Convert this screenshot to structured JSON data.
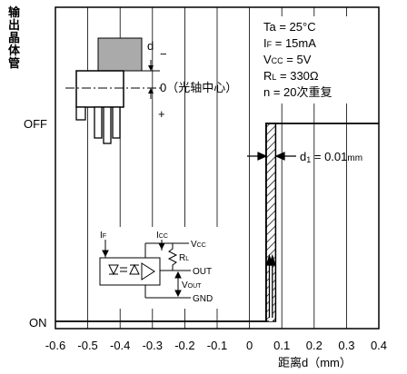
{
  "y_axis": {
    "title_chars": [
      "输",
      "出",
      "晶",
      "体",
      "管"
    ],
    "off_label": "OFF",
    "on_label": "ON"
  },
  "x_axis": {
    "ticks": [
      "-0.6",
      "-0.5",
      "-0.4",
      "-0.3",
      "-0.2",
      "-0.1",
      "0",
      "0.1",
      "0.2",
      "0.3",
      "0.4"
    ],
    "title": "距离d（mm）"
  },
  "conditions": {
    "ta": "Ta = 25°C",
    "if_main": "I",
    "if_sub": "F",
    "if_rest": " = 15mA",
    "vcc_main": "V",
    "vcc_sub": "CC",
    "vcc_rest": " = 5V",
    "rl_main": "R",
    "rl_sub": "L",
    "rl_rest": " = 330Ω",
    "n": "n = 20次重复"
  },
  "sensor": {
    "d_label": "d",
    "zero_label": "0（光轴中心）"
  },
  "annotation": {
    "d1_main": "d",
    "d1_sub": "1",
    "d1_value": " = 0.01",
    "d1_unit": "mm"
  },
  "circuit": {
    "if_main": "I",
    "if_sub": "F",
    "icc_main": "I",
    "icc_sub": "CC",
    "vcc_main": "V",
    "vcc_sub": "CC",
    "rl_main": "R",
    "rl_sub": "L",
    "out": "OUT",
    "vout_main": "V",
    "vout_sub": "OUT",
    "gnd": "GND"
  },
  "chart_data": {
    "type": "line",
    "x_ticks": [
      -0.6,
      -0.5,
      -0.4,
      -0.3,
      -0.2,
      -0.1,
      0,
      0.1,
      0.2,
      0.3,
      0.4
    ],
    "xlabel": "距离d（mm）",
    "ylabel": "输出晶体管",
    "y_states": [
      "OFF",
      "ON"
    ],
    "xlim": [
      -0.6,
      0.4
    ],
    "grid": true,
    "series": [
      {
        "x": [
          -0.6,
          0.045,
          0.045,
          0.08,
          0.08,
          0.4
        ],
        "y": [
          "ON",
          "ON",
          "OFF",
          "OFF",
          "OFF",
          "OFF"
        ]
      }
    ],
    "hysteresis_band": [
      0.045,
      0.08
    ],
    "annotation": "d1 = 0.01mm"
  }
}
